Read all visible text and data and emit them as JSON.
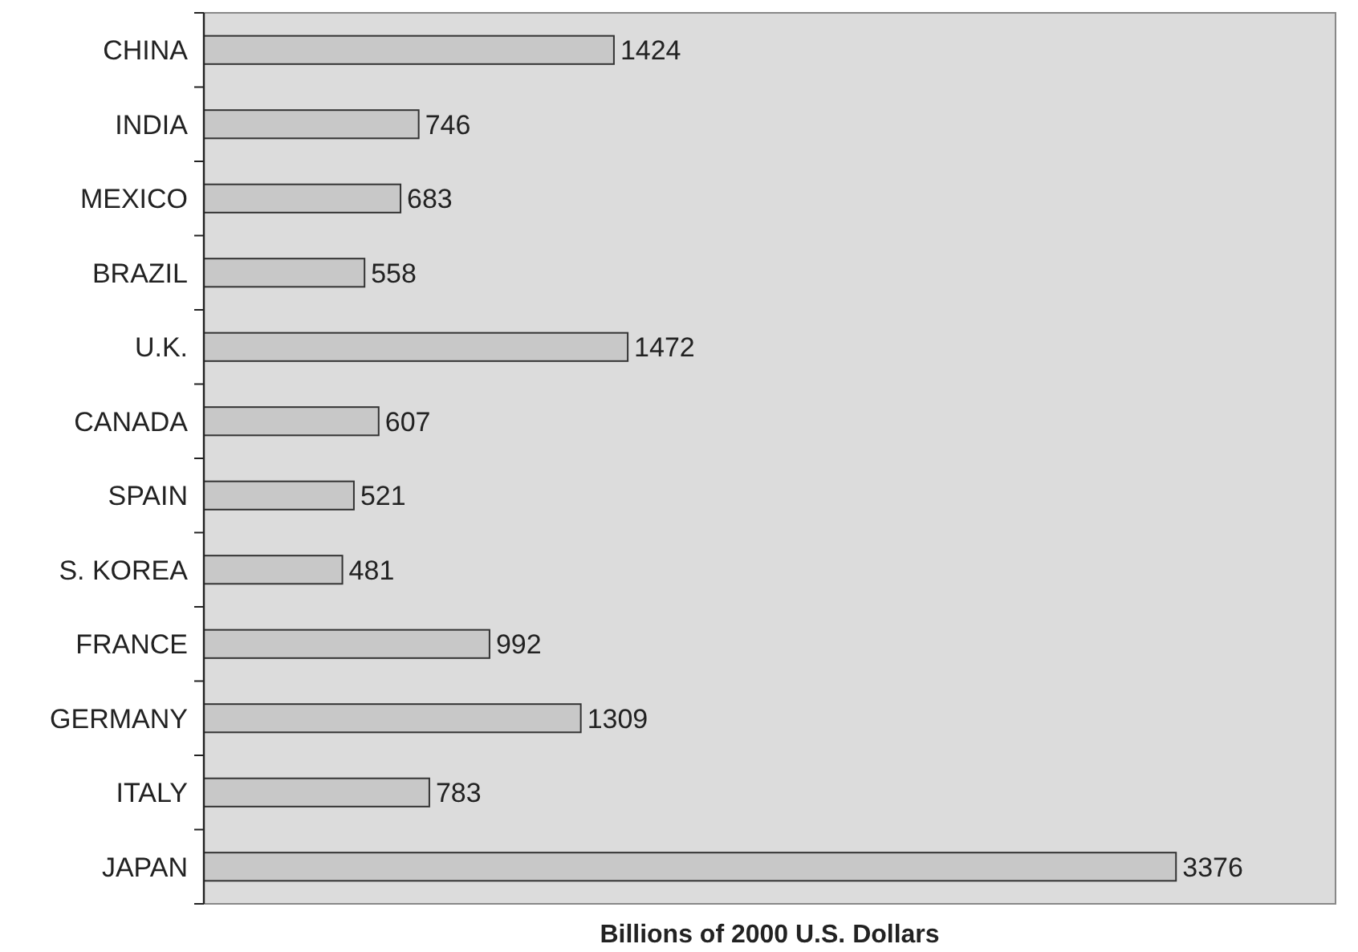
{
  "chart_data": {
    "type": "bar",
    "orientation": "horizontal",
    "xlabel": "Billions of 2000 U.S. Dollars",
    "categories": [
      "CHINA",
      "INDIA",
      "MEXICO",
      "BRAZIL",
      "U.K.",
      "CANADA",
      "SPAIN",
      "S. KOREA",
      "FRANCE",
      "GERMANY",
      "ITALY",
      "JAPAN"
    ],
    "values": [
      1424,
      746,
      683,
      558,
      1472,
      607,
      521,
      481,
      992,
      1309,
      783,
      3376
    ],
    "color": "#c8c8c8",
    "xlim": [
      0,
      3930
    ],
    "tick_labels": "y",
    "data_labels": true
  }
}
